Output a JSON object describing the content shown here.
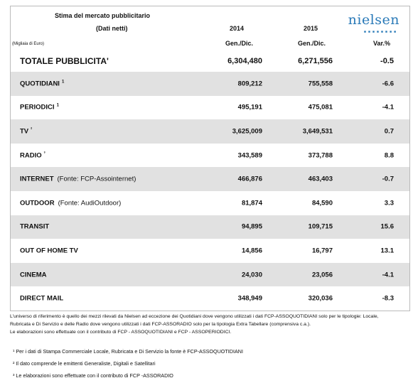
{
  "header": {
    "title": "Stima del mercato pubblicitario",
    "subtitle": "(Dati netti)",
    "unit": "(Migliaia di Euro)",
    "year_1": "2014",
    "year_2": "2015",
    "period_1": "Gen./Dic.",
    "period_2": "Gen./Dic.",
    "change": "Var.%",
    "logo": "nielsen"
  },
  "table": {
    "rows": [
      {
        "name": "TOTALE PUBBLICITA'",
        "v2014": "6,304,480",
        "v2015": "6,271,556",
        "var": "-0.5"
      },
      {
        "name": "QUOTIDIANI",
        "note": "1",
        "v2014": "809,212",
        "v2015": "755,558",
        "var": "-6.6"
      },
      {
        "name": "PERIODICI",
        "note": "1",
        "v2014": "495,191",
        "v2015": "475,081",
        "var": "-4.1"
      },
      {
        "name": "TV",
        "note": "²",
        "v2014": "3,625,009",
        "v2015": "3,649,531",
        "var": "0.7"
      },
      {
        "name": "RADIO",
        "note": "³",
        "v2014": "343,589",
        "v2015": "373,788",
        "var": "8.8"
      },
      {
        "name": "INTERNET",
        "source": "(Fonte: FCP-Assointernet)",
        "v2014": "466,876",
        "v2015": "463,403",
        "var": "-0.7"
      },
      {
        "name": "OUTDOOR",
        "source": "(Fonte: AudiOutdoor)",
        "v2014": "81,874",
        "v2015": "84,590",
        "var": "3.3"
      },
      {
        "name": "TRANSIT",
        "v2014": "94,895",
        "v2015": "109,715",
        "var": "15.6"
      },
      {
        "name": "OUT OF HOME TV",
        "v2014": "14,856",
        "v2015": "16,797",
        "var": "13.1"
      },
      {
        "name": "CINEMA",
        "v2014": "24,030",
        "v2015": "23,056",
        "var": "-4.1"
      },
      {
        "name": "DIRECT MAIL",
        "v2014": "348,949",
        "v2015": "320,036",
        "var": "-8.3"
      }
    ]
  },
  "footer": {
    "lines": [
      "L'universo di riferimento è quello dei mezzi rilevati da Nielsen ad eccezione dei Quotidiani dove vengono utilizzati i dati FCP-ASSOQUOTIDIANI solo per le tipologie: Locale,",
      "Rubricata e Di Servizio e delle Radio dove vengono utilizzati i dati FCP-ASSORADIO solo per la tipologia Extra Tabellare (comprensiva c.a.).",
      "Le elaborazioni sono effettuate con il contributo di FCP - ASSOQUOTIDIANI e FCP - ASSOPERIODICI."
    ],
    "notes": [
      "¹  Per i dati di Stampa Commerciale Locale, Rubricata e Di Servizio la fonte è  FCP-ASSOQUOTIDIANI",
      "²  Il dato comprende le emittenti Generaliste, Digitali e Satellitari",
      "³  Le elaborazioni sono effettuate con il contributo di FCP -ASSORADIO"
    ]
  }
}
